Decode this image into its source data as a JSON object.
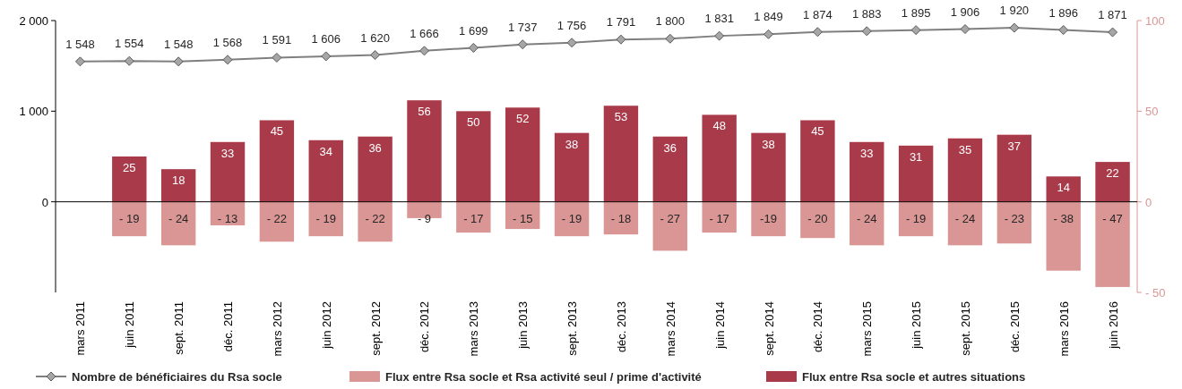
{
  "chart_data": {
    "type": "bar",
    "stacked": true,
    "categories": [
      "mars 2011",
      "juin 2011",
      "sept. 2011",
      "déc. 2011",
      "mars 2012",
      "juin 2012",
      "sept. 2012",
      "déc. 2012",
      "mars 2013",
      "juin 2013",
      "sept. 2013",
      "déc. 2013",
      "mars 2014",
      "juin 2014",
      "sept. 2014",
      "déc. 2014",
      "mars 2015",
      "juin 2015",
      "sept. 2015",
      "déc. 2015",
      "mars 2016",
      "juin 2016"
    ],
    "ylim": [
      -1000,
      2000
    ],
    "yticks": [
      {
        "value": 0,
        "label": "0"
      },
      {
        "value": 1000,
        "label": "1 000"
      },
      {
        "value": 2000,
        "label": "2 000"
      }
    ],
    "y2lim": [
      -50,
      100
    ],
    "y2ticks": [
      {
        "value": -50,
        "label": "- 50"
      },
      {
        "value": 0,
        "label": "0"
      },
      {
        "value": 50,
        "label": "50"
      },
      {
        "value": 100,
        "label": "100"
      }
    ],
    "legend": "bottom",
    "series": [
      {
        "name": "Nombre de bénéficiaires du Rsa socle",
        "type": "line",
        "marker": "diamond",
        "color": "#7f7f7f",
        "values": [
          1548,
          1554,
          1548,
          1568,
          1591,
          1606,
          1620,
          1666,
          1699,
          1737,
          1756,
          1791,
          1800,
          1831,
          1849,
          1874,
          1883,
          1895,
          1906,
          1920,
          1896,
          1871
        ],
        "value_labels": [
          "1 548",
          "1 554",
          "1 548",
          "1 568",
          "1 591",
          "1 606",
          "1 620",
          "1 666",
          "1 699",
          "1 737",
          "1 756",
          "1 791",
          "1 800",
          "1 831",
          "1 849",
          "1 874",
          "1 883",
          "1 895",
          "1 906",
          "1 920",
          "1 896",
          "1 871"
        ]
      },
      {
        "name": "Flux entre Rsa socle et Rsa activité seul / prime d'activité",
        "axis": "y2",
        "color": "#d99694",
        "values": [
          null,
          -19,
          -24,
          -13,
          -22,
          -19,
          -22,
          -9,
          -17,
          -15,
          -19,
          -18,
          -27,
          -17,
          -19,
          -20,
          -24,
          -19,
          -24,
          -23,
          -38,
          -47
        ],
        "value_labels": [
          null,
          "- 19",
          "- 24",
          "- 13",
          "- 22",
          "- 19",
          "- 22",
          "- 9",
          "- 17",
          "- 15",
          "- 19",
          "- 18",
          "- 27",
          "- 17",
          "-19",
          "- 20",
          "- 24",
          "- 19",
          "- 24",
          "- 23",
          "- 38",
          "- 47"
        ]
      },
      {
        "name": "Flux entre Rsa socle et autres situations",
        "axis": "y2",
        "color": "#a93a4a",
        "values": [
          null,
          25,
          18,
          33,
          45,
          34,
          36,
          56,
          50,
          52,
          38,
          53,
          36,
          48,
          38,
          45,
          33,
          31,
          35,
          37,
          14,
          22
        ],
        "value_labels": [
          null,
          "25",
          "18",
          "33",
          "45",
          "34",
          "36",
          "56",
          "50",
          "52",
          "38",
          "53",
          "36",
          "48",
          "38",
          "45",
          "33",
          "31",
          "35",
          "37",
          "14",
          "22"
        ]
      }
    ]
  }
}
